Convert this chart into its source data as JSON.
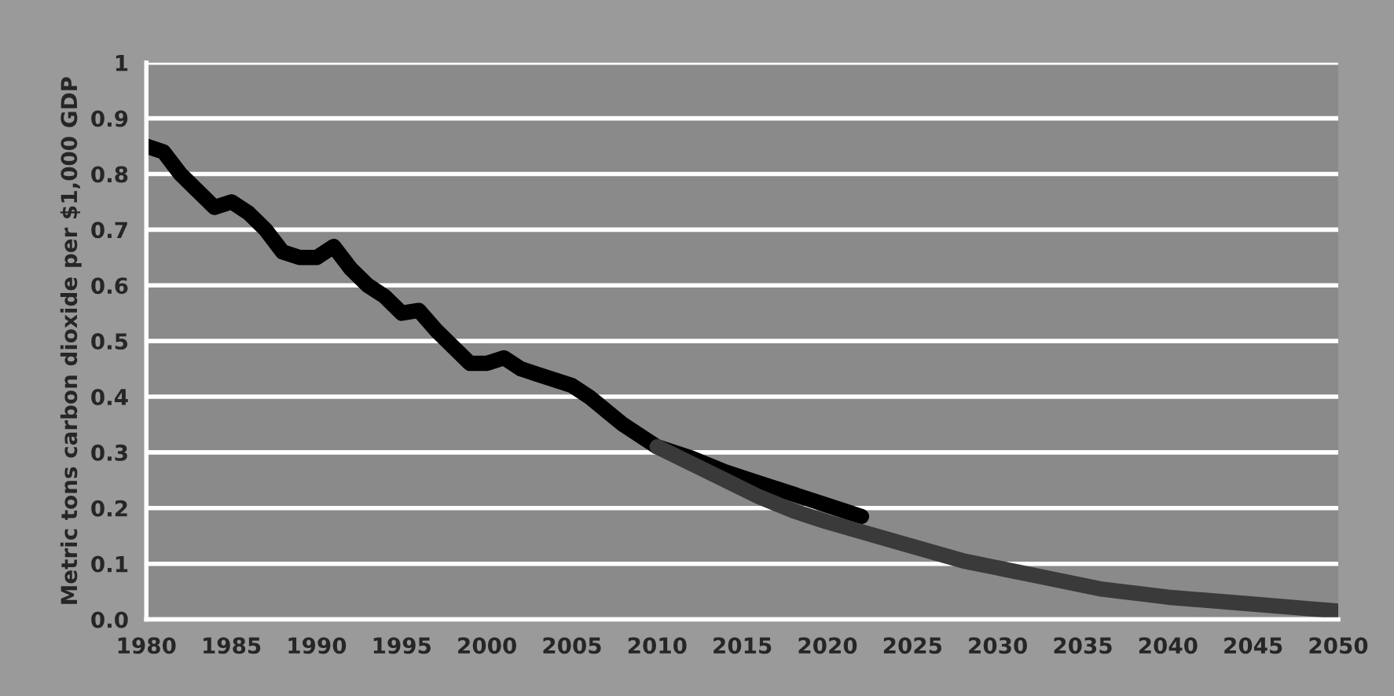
{
  "chart_data": {
    "type": "line",
    "ylabel": "Metric tons carbon dioxide per $1,000 GDP",
    "series": [
      {
        "color": "#000000",
        "x": [
          1980,
          1981,
          1982,
          1983,
          1984,
          1985,
          1986,
          1987,
          1988,
          1989,
          1990,
          1991,
          1992,
          1993,
          1994,
          1995,
          1996,
          1997,
          1998,
          1999,
          2000,
          2001,
          2002,
          2003,
          2004,
          2005,
          2006,
          2008,
          2010,
          2012,
          2014,
          2016,
          2018,
          2020,
          2022
        ],
        "values": [
          0.85,
          0.84,
          0.8,
          0.77,
          0.74,
          0.75,
          0.73,
          0.7,
          0.66,
          0.65,
          0.65,
          0.67,
          0.63,
          0.6,
          0.58,
          0.55,
          0.555,
          0.52,
          0.49,
          0.46,
          0.46,
          0.47,
          0.45,
          0.44,
          0.43,
          0.42,
          0.4,
          0.35,
          0.31,
          0.29,
          0.265,
          0.245,
          0.225,
          0.205,
          0.185
        ]
      },
      {
        "color": "#3a3a3a",
        "x": [
          2010,
          2012,
          2014,
          2016,
          2018,
          2020,
          2024,
          2028,
          2032,
          2036,
          2040,
          2044,
          2048,
          2050
        ],
        "values": [
          0.31,
          0.28,
          0.25,
          0.22,
          0.195,
          0.175,
          0.14,
          0.105,
          0.08,
          0.055,
          0.04,
          0.03,
          0.02,
          0.015
        ]
      }
    ],
    "xlim": [
      1980,
      2050
    ],
    "xticks": [
      1980,
      1985,
      1990,
      1995,
      2000,
      2005,
      2010,
      2015,
      2020,
      2025,
      2030,
      2035,
      2040,
      2045,
      2050
    ],
    "ylim": [
      0,
      1
    ],
    "yticks": [
      {
        "value": 0,
        "label": "0.0"
      },
      0.1,
      0.2,
      0.3,
      0.4,
      0.5,
      0.6,
      0.7,
      0.8,
      0.9,
      1
    ],
    "grid": "y",
    "marker": "none",
    "line_style": "solid"
  }
}
